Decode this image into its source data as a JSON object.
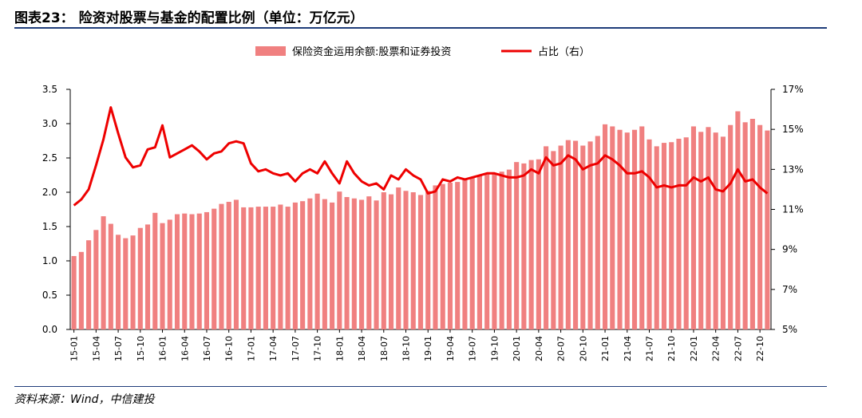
{
  "figure": {
    "title": "图表23： 险资对股票与基金的配置比例（单位：万亿元）",
    "source": "资料来源：Wind，中信建投"
  },
  "colors": {
    "bar": "#f08080",
    "line": "#ee0000",
    "rule": "#1f3d7a"
  },
  "chart_data": {
    "type": "bar+line",
    "series": [
      {
        "name": "保险资金运用余额:股票和证券投资",
        "type": "bar",
        "axis": "left",
        "values": [
          1.07,
          1.13,
          1.3,
          1.45,
          1.65,
          1.54,
          1.38,
          1.33,
          1.37,
          1.48,
          1.53,
          1.7,
          1.55,
          1.6,
          1.68,
          1.69,
          1.68,
          1.69,
          1.71,
          1.76,
          1.83,
          1.86,
          1.89,
          1.78,
          1.78,
          1.79,
          1.79,
          1.79,
          1.82,
          1.79,
          1.85,
          1.87,
          1.91,
          1.98,
          1.9,
          1.85,
          2.01,
          1.93,
          1.91,
          1.89,
          1.94,
          1.88,
          2.0,
          1.97,
          2.07,
          2.02,
          2.0,
          1.96,
          2.02,
          2.1,
          2.12,
          2.14,
          2.15,
          2.2,
          2.22,
          2.24,
          2.26,
          2.28,
          2.3,
          2.33,
          2.44,
          2.42,
          2.47,
          2.48,
          2.67,
          2.6,
          2.68,
          2.76,
          2.75,
          2.68,
          2.74,
          2.82,
          2.99,
          2.96,
          2.91,
          2.87,
          2.91,
          2.96,
          2.77,
          2.67,
          2.72,
          2.73,
          2.78,
          2.8,
          2.96,
          2.88,
          2.95,
          2.87,
          2.81,
          2.98,
          3.18,
          3.02,
          3.07,
          2.98,
          2.9
        ]
      },
      {
        "name": "占比（右）",
        "type": "line",
        "axis": "right",
        "values": [
          11.2,
          11.5,
          12.0,
          13.2,
          14.5,
          16.1,
          14.8,
          13.6,
          13.1,
          13.2,
          14.0,
          14.1,
          15.2,
          13.6,
          13.8,
          14.0,
          14.2,
          13.9,
          13.5,
          13.8,
          13.9,
          14.3,
          14.4,
          14.3,
          13.3,
          12.9,
          13.0,
          12.8,
          12.7,
          12.8,
          12.4,
          12.8,
          13.0,
          12.8,
          13.4,
          12.8,
          12.3,
          13.4,
          12.8,
          12.4,
          12.2,
          12.3,
          12.0,
          12.7,
          12.5,
          13.0,
          12.7,
          12.5,
          11.8,
          11.9,
          12.5,
          12.4,
          12.6,
          12.5,
          12.6,
          12.7,
          12.8,
          12.8,
          12.7,
          12.6,
          12.6,
          12.7,
          13.0,
          12.8,
          13.6,
          13.2,
          13.3,
          13.7,
          13.5,
          13.0,
          13.2,
          13.3,
          13.7,
          13.5,
          13.2,
          12.8,
          12.8,
          12.9,
          12.6,
          12.1,
          12.2,
          12.1,
          12.2,
          12.2,
          12.6,
          12.4,
          12.6,
          12.0,
          11.9,
          12.3,
          13.0,
          12.4,
          12.5,
          12.1,
          11.8
        ]
      }
    ],
    "x_tick_labels": [
      "15-01",
      "15-04",
      "15-07",
      "15-10",
      "16-01",
      "16-04",
      "16-07",
      "16-10",
      "17-01",
      "17-04",
      "17-07",
      "17-10",
      "18-01",
      "18-04",
      "18-07",
      "18-10",
      "19-01",
      "19-04",
      "19-07",
      "19-10",
      "20-01",
      "20-04",
      "20-07",
      "20-10",
      "21-01",
      "21-04",
      "21-07",
      "21-10",
      "22-01",
      "22-04",
      "22-07",
      "22-10"
    ],
    "left_axis": {
      "min": 0.0,
      "max": 3.5,
      "ticks": [
        "0.0",
        "0.5",
        "1.0",
        "1.5",
        "2.0",
        "2.5",
        "3.0",
        "3.5"
      ]
    },
    "right_axis": {
      "min": 5,
      "max": 17,
      "ticks": [
        "5%",
        "7%",
        "9%",
        "11%",
        "13%",
        "15%",
        "17%"
      ]
    },
    "legend_position": "top-center"
  }
}
